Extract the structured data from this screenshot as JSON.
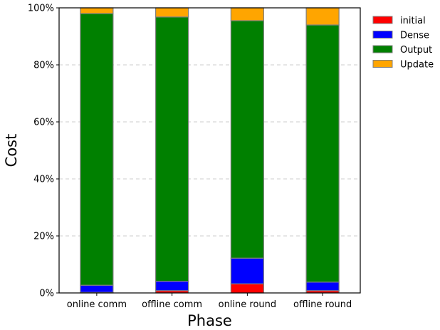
{
  "chart_data": {
    "type": "bar",
    "stacked": true,
    "normalized_percent": true,
    "categories": [
      "online comm",
      "offline comm",
      "online round",
      "offline round"
    ],
    "series": [
      {
        "name": "initial",
        "color": "#ff0000",
        "values": [
          0.2,
          0.8,
          3.2,
          0.8
        ]
      },
      {
        "name": "Dense",
        "color": "#0000ff",
        "values": [
          2.5,
          3.3,
          9.0,
          3.0
        ]
      },
      {
        "name": "Output",
        "color": "#008000",
        "values": [
          95.3,
          92.7,
          83.3,
          90.2
        ]
      },
      {
        "name": "Update",
        "color": "#ffa500",
        "values": [
          2.0,
          3.2,
          4.5,
          6.0
        ]
      }
    ],
    "xlabel": "Phase",
    "ylabel": "Cost",
    "ylim": [
      0,
      100
    ],
    "yticks": [
      0,
      20,
      40,
      60,
      80,
      100
    ],
    "ytick_labels": [
      "0%",
      "20%",
      "40%",
      "60%",
      "80%",
      "100%"
    ],
    "grid": "horizontal-dashed",
    "legend_position": "outside-top-right"
  }
}
